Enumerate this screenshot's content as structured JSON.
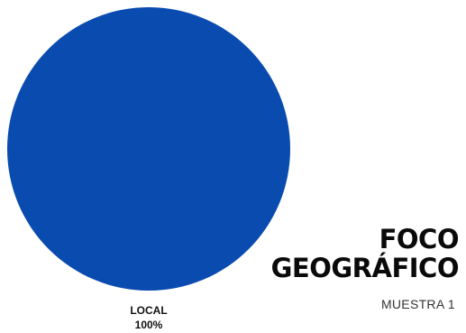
{
  "chart_data": {
    "type": "pie",
    "title_lines": [
      "FOCO",
      "GEOGRÁFICO"
    ],
    "subtitle": "MUESTRA 1",
    "slices": [
      {
        "label": "LOCAL",
        "value": 100,
        "value_label": "100%",
        "color": "#0a4bb0"
      }
    ]
  }
}
